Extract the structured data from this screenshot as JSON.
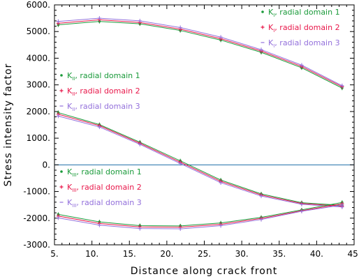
{
  "chart_data": {
    "type": "line",
    "xlabel": "Distance along crack front",
    "ylabel": "Stress intensity factor",
    "xlim": [
      5,
      45
    ],
    "ylim": [
      -3000,
      6000
    ],
    "x_ticks": [
      "5.",
      "10.",
      "15.",
      "20.",
      "25.",
      "30.",
      "35.",
      "40.",
      "45."
    ],
    "y_ticks": [
      "-3000.",
      "-2000.",
      "-1000.",
      "0.",
      "1000.",
      "2000.",
      "3000.",
      "4000.",
      "5000.",
      "6000."
    ],
    "x_tick_values": [
      5,
      10,
      15,
      20,
      25,
      30,
      35,
      40,
      45
    ],
    "y_tick_values": [
      -3000,
      -2000,
      -1000,
      0,
      1000,
      2000,
      3000,
      4000,
      5000,
      6000
    ],
    "zero_line": true,
    "grid": false,
    "x": [
      5.5,
      11.0,
      16.4,
      21.8,
      27.2,
      32.6,
      38.0,
      43.4
    ],
    "series": [
      {
        "group": "I",
        "name": "K",
        "sub": "I",
        "label": ", radial domain 1",
        "color": "#1a9a3a",
        "values": [
          5250,
          5380,
          5290,
          5040,
          4680,
          4220,
          3640,
          2880
        ]
      },
      {
        "group": "I",
        "name": "K",
        "sub": "I",
        "label": ", radial domain 2",
        "color": "#e8174a",
        "values": [
          5310,
          5440,
          5340,
          5090,
          4730,
          4270,
          3690,
          2930
        ]
      },
      {
        "group": "I",
        "name": "K",
        "sub": "I",
        "label": ", radial domain 3",
        "color": "#9370db",
        "values": [
          5380,
          5500,
          5400,
          5150,
          4790,
          4320,
          3740,
          2970
        ]
      },
      {
        "group": "II",
        "name": "K",
        "sub": "II",
        "label": ", radial domain 1",
        "color": "#1a9a3a",
        "values": [
          1960,
          1510,
          850,
          150,
          -570,
          -1090,
          -1420,
          -1520
        ]
      },
      {
        "group": "II",
        "name": "K",
        "sub": "II",
        "label": ", radial domain 2",
        "color": "#e8174a",
        "values": [
          1900,
          1470,
          810,
          100,
          -620,
          -1130,
          -1450,
          -1550
        ]
      },
      {
        "group": "II",
        "name": "K",
        "sub": "II",
        "label": ", radial domain 3",
        "color": "#9370db",
        "values": [
          1830,
          1420,
          770,
          50,
          -670,
          -1170,
          -1480,
          -1580
        ]
      },
      {
        "group": "III",
        "name": "K",
        "sub": "III",
        "label": ", radial domain 1",
        "color": "#1a9a3a",
        "values": [
          -1860,
          -2140,
          -2280,
          -2290,
          -2180,
          -1970,
          -1690,
          -1410
        ]
      },
      {
        "group": "III",
        "name": "K",
        "sub": "III",
        "label": ", radial domain 2",
        "color": "#e8174a",
        "values": [
          -1920,
          -2200,
          -2330,
          -2340,
          -2230,
          -2010,
          -1720,
          -1460
        ]
      },
      {
        "group": "III",
        "name": "K",
        "sub": "III",
        "label": ", radial domain 3",
        "color": "#9370db",
        "values": [
          -1990,
          -2260,
          -2390,
          -2400,
          -2280,
          -2050,
          -1740,
          -1510
        ]
      }
    ]
  }
}
